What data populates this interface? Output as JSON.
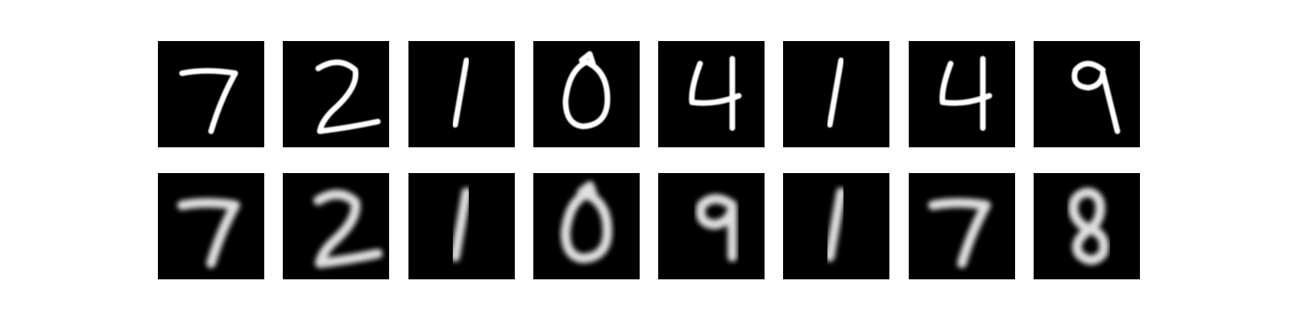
{
  "rows": [
    {
      "label": "",
      "digits": [
        "7",
        "2",
        "1",
        "0",
        "4",
        "1",
        "4",
        "9"
      ]
    },
    {
      "label": "",
      "digits": [
        "7",
        "2",
        "1",
        "0",
        "9",
        "1",
        "7",
        "8"
      ]
    }
  ],
  "colors": {
    "background": "#ffffff",
    "tile": "#000000",
    "stroke": "#ffffff"
  }
}
